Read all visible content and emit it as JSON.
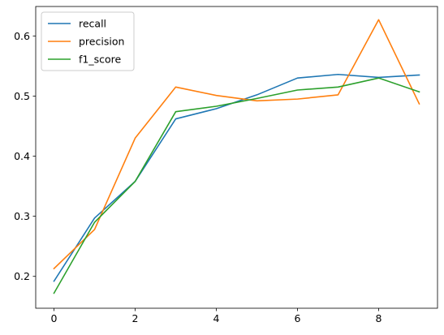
{
  "chart_data": {
    "type": "line",
    "title": "",
    "xlabel": "",
    "ylabel": "",
    "x": [
      0,
      1,
      2,
      3,
      4,
      5,
      6,
      7,
      8,
      9
    ],
    "xlim": [
      -0.45,
      9.45
    ],
    "ylim": [
      0.147,
      0.649
    ],
    "x_ticks": [
      0,
      2,
      4,
      6,
      8
    ],
    "y_ticks": [
      0.2,
      0.3,
      0.4,
      0.5,
      0.6
    ],
    "x_tick_labels": [
      "0",
      "2",
      "4",
      "6",
      "8"
    ],
    "y_tick_labels": [
      "0.2",
      "0.3",
      "0.4",
      "0.5",
      "0.6"
    ],
    "grid": false,
    "legend": {
      "placement": "top-left"
    },
    "series": [
      {
        "name": "recall",
        "color": "#1f77b4",
        "values": [
          0.192,
          0.297,
          0.358,
          0.462,
          0.479,
          0.502,
          0.53,
          0.536,
          0.531,
          0.535
        ]
      },
      {
        "name": "precision",
        "color": "#ff7f0e",
        "values": [
          0.213,
          0.278,
          0.43,
          0.515,
          0.501,
          0.492,
          0.495,
          0.502,
          0.627,
          0.487
        ]
      },
      {
        "name": "f1_score",
        "color": "#2ca02c",
        "values": [
          0.172,
          0.29,
          0.358,
          0.474,
          0.483,
          0.496,
          0.51,
          0.515,
          0.53,
          0.507
        ]
      }
    ]
  }
}
